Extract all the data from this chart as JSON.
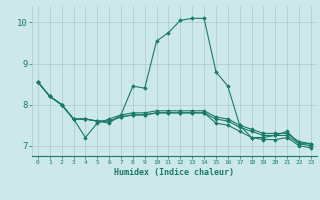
{
  "xlabel": "Humidex (Indice chaleur)",
  "ylabel": "",
  "xlim": [
    -0.5,
    23.5
  ],
  "ylim": [
    6.75,
    10.4
  ],
  "yticks": [
    7,
    8,
    9,
    10
  ],
  "xticks": [
    0,
    1,
    2,
    3,
    4,
    5,
    6,
    7,
    8,
    9,
    10,
    11,
    12,
    13,
    14,
    15,
    16,
    17,
    18,
    19,
    20,
    21,
    22,
    23
  ],
  "bg_color": "#cce8e8",
  "grid_color": "#aacccc",
  "line_color": "#1a7a6a",
  "lines": [
    {
      "x": [
        0,
        1,
        2,
        3,
        4,
        5,
        6,
        7,
        8,
        9,
        10,
        11,
        12,
        13,
        14,
        15,
        16,
        17,
        18,
        19,
        20,
        21,
        22,
        23
      ],
      "y": [
        8.55,
        8.2,
        8.0,
        7.65,
        7.2,
        7.55,
        7.65,
        7.75,
        8.45,
        8.4,
        9.55,
        9.75,
        10.05,
        10.1,
        10.1,
        8.8,
        8.45,
        7.5,
        7.2,
        7.2,
        7.25,
        7.35,
        7.05,
        7.05
      ]
    },
    {
      "x": [
        0,
        1,
        2,
        3,
        4,
        5,
        6,
        7,
        8,
        9,
        10,
        11,
        12,
        13,
        14,
        15,
        16,
        17,
        18,
        19,
        20,
        21,
        22,
        23
      ],
      "y": [
        8.55,
        8.2,
        8.0,
        7.65,
        7.65,
        7.6,
        7.55,
        7.75,
        7.8,
        7.8,
        7.85,
        7.85,
        7.85,
        7.85,
        7.85,
        7.7,
        7.65,
        7.5,
        7.4,
        7.3,
        7.3,
        7.3,
        7.1,
        7.05
      ]
    },
    {
      "x": [
        0,
        1,
        2,
        3,
        4,
        5,
        6,
        7,
        8,
        9,
        10,
        11,
        12,
        13,
        14,
        15,
        16,
        17,
        18,
        19,
        20,
        21,
        22,
        23
      ],
      "y": [
        8.55,
        8.2,
        8.0,
        7.65,
        7.65,
        7.6,
        7.6,
        7.7,
        7.75,
        7.75,
        7.8,
        7.8,
        7.8,
        7.8,
        7.8,
        7.65,
        7.6,
        7.45,
        7.35,
        7.25,
        7.25,
        7.25,
        7.05,
        7.0
      ]
    },
    {
      "x": [
        0,
        1,
        2,
        3,
        4,
        5,
        6,
        7,
        8,
        9,
        10,
        11,
        12,
        13,
        14,
        15,
        16,
        17,
        18,
        19,
        20,
        21,
        22,
        23
      ],
      "y": [
        8.55,
        8.2,
        8.0,
        7.65,
        7.65,
        7.6,
        7.6,
        7.7,
        7.75,
        7.75,
        7.8,
        7.8,
        7.8,
        7.8,
        7.8,
        7.55,
        7.5,
        7.35,
        7.2,
        7.15,
        7.15,
        7.2,
        7.0,
        6.95
      ]
    }
  ]
}
